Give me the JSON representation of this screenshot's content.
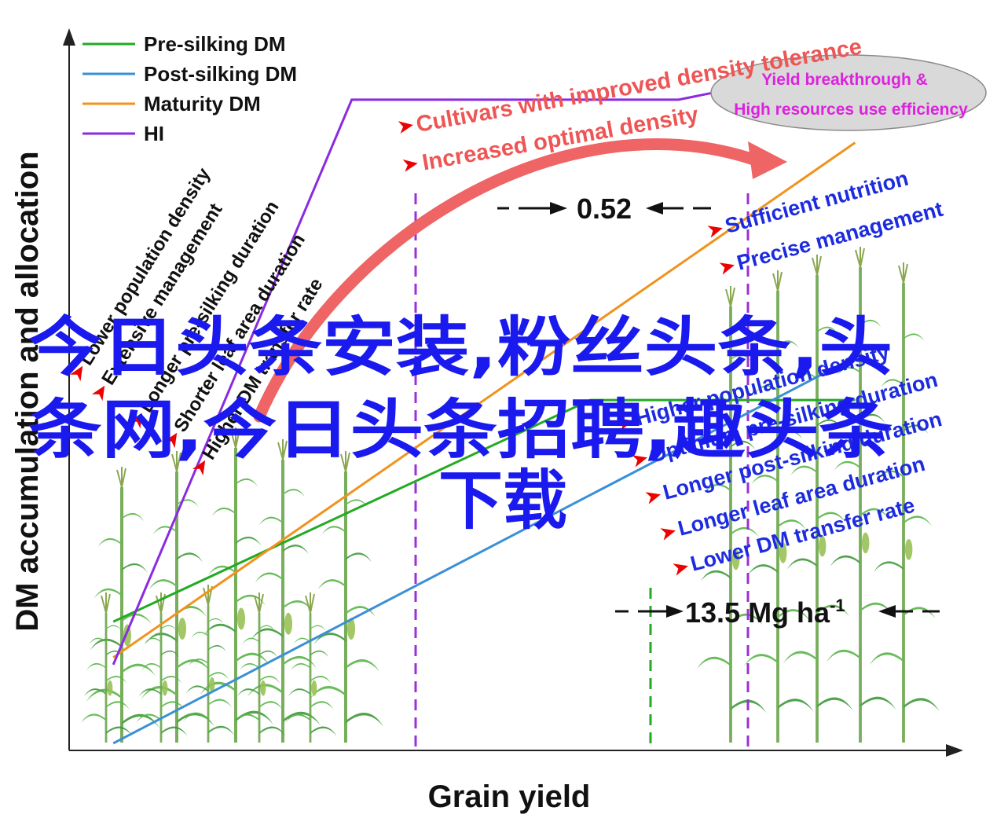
{
  "chart_data": {
    "type": "line",
    "xlabel": "Grain yield",
    "ylabel": "DM accumulation and allocation",
    "series": [
      {
        "name": "Pre-silking DM",
        "color": "#22aa22",
        "points": [
          [
            0.05,
            0.18
          ],
          [
            0.59,
            0.49
          ],
          [
            0.89,
            0.49
          ]
        ]
      },
      {
        "name": "Post-silking DM",
        "color": "#3a8fd6",
        "points": [
          [
            0.05,
            0.01
          ],
          [
            0.89,
            0.55
          ]
        ]
      },
      {
        "name": "Maturity DM",
        "color": "#f0931e",
        "points": [
          [
            0.05,
            0.13
          ],
          [
            0.89,
            0.85
          ]
        ]
      },
      {
        "name": "HI",
        "color": "#8a2be2",
        "points": [
          [
            0.05,
            0.12
          ],
          [
            0.32,
            0.91
          ],
          [
            0.69,
            0.91
          ],
          [
            0.89,
            0.96
          ]
        ]
      }
    ],
    "annotations": {
      "hi_value": "0.52",
      "yield_value": "13.5 Mg ha",
      "yield_exponent": "-1"
    }
  },
  "legend": {
    "items": [
      {
        "label": "Pre-silking DM",
        "color": "#22aa22"
      },
      {
        "label": "Post-silking DM",
        "color": "#3a8fd6"
      },
      {
        "label": "Maturity DM",
        "color": "#f0931e"
      },
      {
        "label": "HI",
        "color": "#8a2be2"
      }
    ]
  },
  "arrow_labels": {
    "line1": "Cultivars with improved density tolerance",
    "line2": "Increased optimal density",
    "color": "#ee5555"
  },
  "oval": {
    "line1": "Yield breakthrough &",
    "line2": "High resources use efficiency",
    "color": "#dd22dd"
  },
  "left_constraints": [
    "Lower population density",
    "Extensive management",
    "Longer pre-silking duration",
    "Shorter leaf area duration",
    "Higher DM transfer rate"
  ],
  "right_upper_constraints": [
    "Sufficient nutrition",
    "Precise management"
  ],
  "right_lower_constraints": [
    "Higher population density",
    "Optimum pre-silking duration",
    "Longer post-silking duration",
    "Longer leaf area duration",
    "Lower DM transfer rate"
  ],
  "watermark": {
    "line1": "今日头条安装,粉丝头条,头",
    "line2": "条网,今日头条招聘,趣头条",
    "line3": "下载",
    "color": "#1a1aee"
  }
}
